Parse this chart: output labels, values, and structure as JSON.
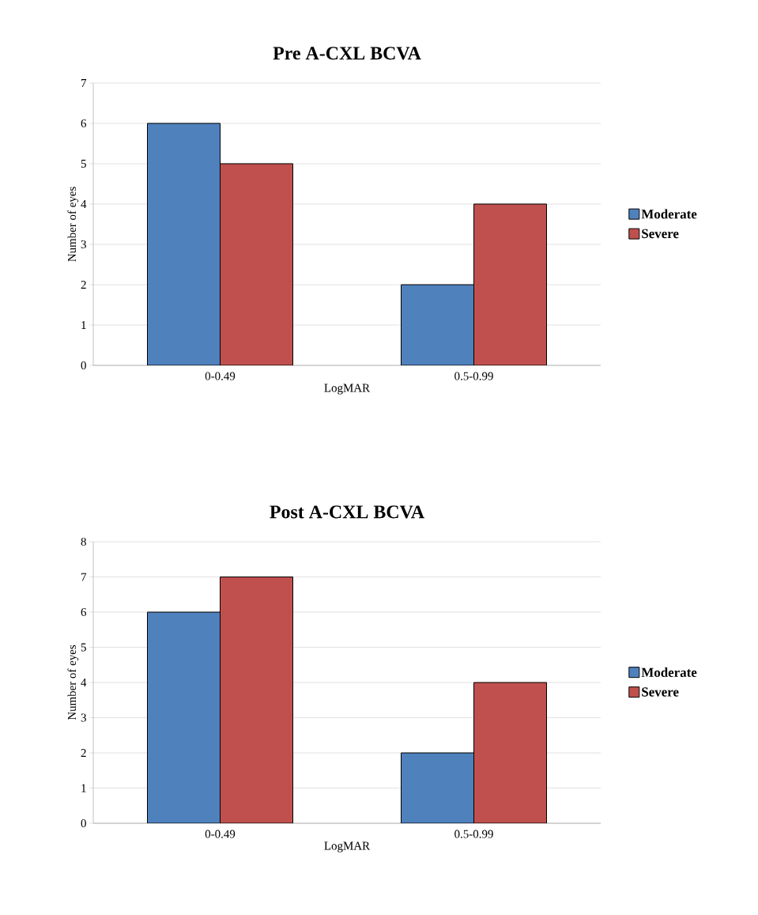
{
  "chart_data": [
    {
      "type": "bar",
      "title": "Pre A-CXL BCVA",
      "xlabel": "LogMAR",
      "ylabel": "Number of eyes",
      "categories": [
        "0-0.49",
        "0.5-0.99"
      ],
      "series": [
        {
          "name": "Moderate",
          "color": "#4f81bd",
          "values": [
            6,
            2
          ]
        },
        {
          "name": "Severe",
          "color": "#c0504d",
          "values": [
            5,
            4
          ]
        }
      ],
      "ylim": [
        0,
        7
      ],
      "yticks": [
        0,
        1,
        2,
        3,
        4,
        5,
        6,
        7
      ],
      "grid": "y",
      "legend": "right"
    },
    {
      "type": "bar",
      "title": "Post A-CXL BCVA",
      "xlabel": "LogMAR",
      "ylabel": "Number of eyes",
      "categories": [
        "0-0.49",
        "0.5-0.99"
      ],
      "series": [
        {
          "name": "Moderate",
          "color": "#4f81bd",
          "values": [
            6,
            2
          ]
        },
        {
          "name": "Severe",
          "color": "#c0504d",
          "values": [
            7,
            4
          ]
        }
      ],
      "ylim": [
        0,
        8
      ],
      "yticks": [
        0,
        1,
        2,
        3,
        4,
        5,
        6,
        7,
        8
      ],
      "grid": "y",
      "legend": "right"
    }
  ]
}
